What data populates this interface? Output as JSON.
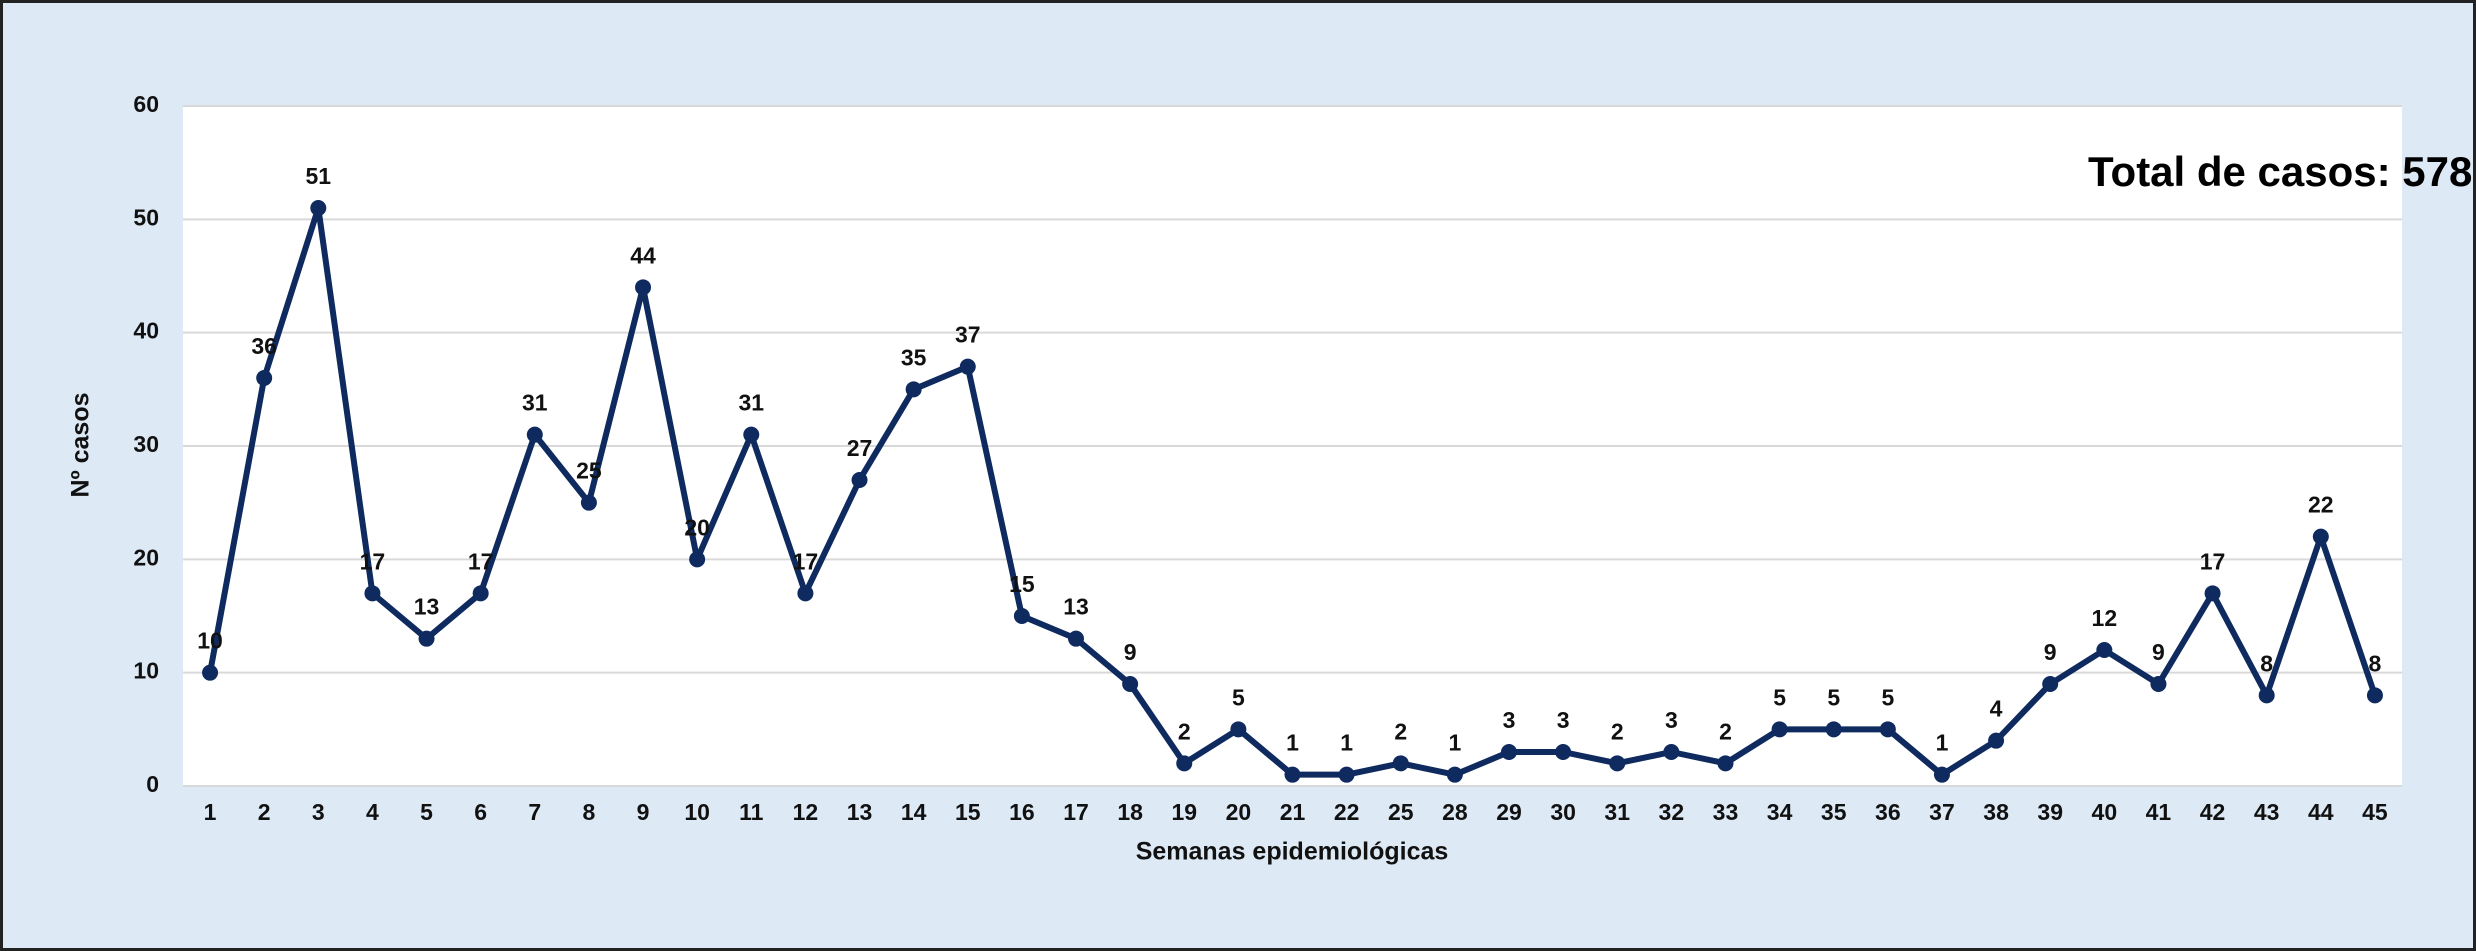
{
  "chart_data": {
    "type": "line",
    "annotation": "Total de casos: 578",
    "x_label": "Semanas epidemiológicas",
    "y_label": "Nº casos",
    "categories": [
      "1",
      "2",
      "3",
      "4",
      "5",
      "6",
      "7",
      "8",
      "9",
      "10",
      "11",
      "12",
      "13",
      "14",
      "15",
      "16",
      "17",
      "18",
      "19",
      "20",
      "21",
      "22",
      "25",
      "28",
      "29",
      "30",
      "31",
      "32",
      "33",
      "34",
      "35",
      "36",
      "37",
      "38",
      "39",
      "40",
      "41",
      "42",
      "43",
      "44",
      "45"
    ],
    "series": [
      {
        "name": null,
        "color": "#0e2a5f",
        "values": [
          10,
          36,
          51,
          17,
          13,
          17,
          31,
          25,
          44,
          20,
          31,
          17,
          27,
          35,
          37,
          15,
          13,
          9,
          2,
          5,
          1,
          1,
          2,
          1,
          3,
          3,
          2,
          3,
          2,
          5,
          5,
          5,
          1,
          4,
          9,
          12,
          9,
          17,
          8,
          22,
          8
        ]
      }
    ],
    "ylim": [
      0,
      60
    ],
    "yticks": [
      0,
      10,
      20,
      30,
      40,
      50,
      60
    ],
    "grid": true
  }
}
